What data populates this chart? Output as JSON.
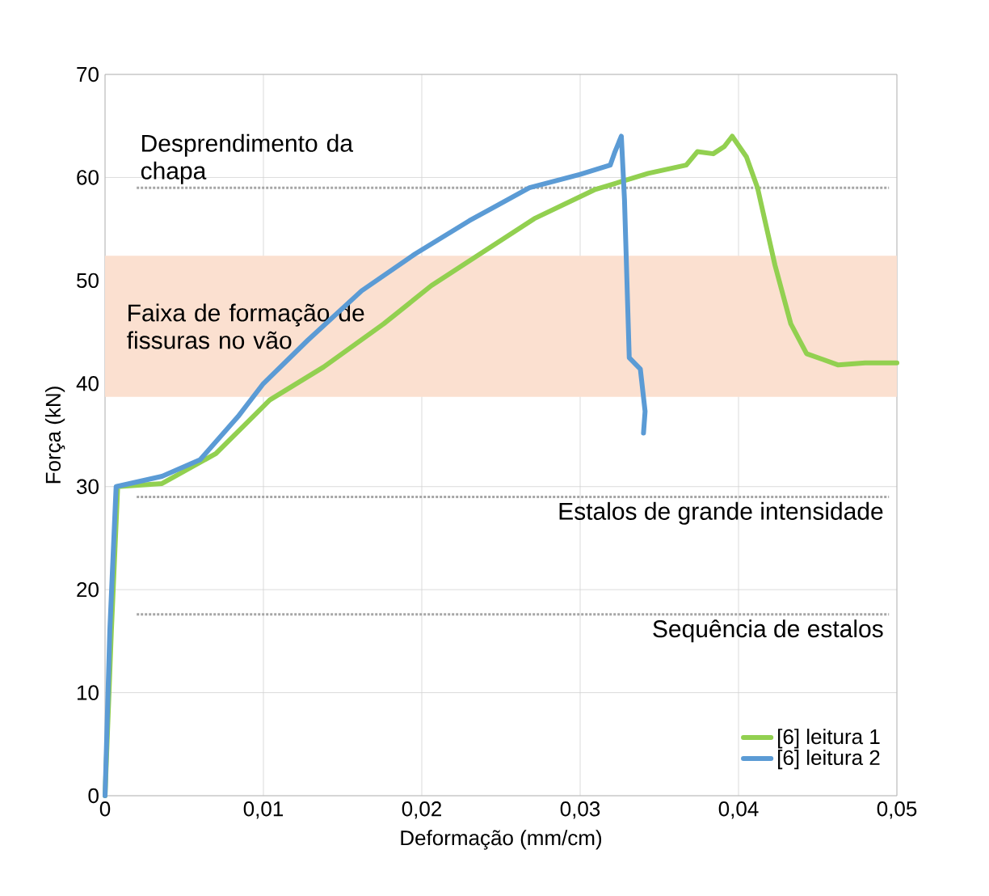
{
  "chart_data": {
    "type": "line",
    "xlabel": "Deformação (mm/cm)",
    "ylabel": "Força (kN)",
    "xlim": [
      0,
      0.05
    ],
    "ylim": [
      0,
      70
    ],
    "xticks": [
      0,
      {
        "value": 0.01,
        "label": "0,01"
      },
      {
        "value": 0.02,
        "label": "0,02"
      },
      {
        "value": 0.03,
        "label": "0,03"
      },
      {
        "value": 0.04,
        "label": "0,04"
      },
      {
        "value": 0.05,
        "label": "0,05"
      }
    ],
    "yticks": [
      0,
      10,
      20,
      30,
      40,
      50,
      60,
      70
    ],
    "grid": true,
    "legend": "bottom right",
    "marker": "none",
    "line_style": "solid",
    "series": [
      {
        "name": "[6] leitura 1",
        "color": "#92d050",
        "x": [
          0,
          0.0004,
          0.0008,
          0.0036,
          0.007,
          0.0104,
          0.0138,
          0.0176,
          0.0206,
          0.0237,
          0.0271,
          0.0309,
          0.0343,
          0.0367,
          0.0374,
          0.0384,
          0.0391,
          0.0396,
          0.0405,
          0.0412,
          0.0423,
          0.0433,
          0.0443,
          0.0463,
          0.048,
          0.05
        ],
        "values": [
          0,
          16,
          30,
          30.3,
          33.2,
          38.4,
          41.6,
          45.8,
          49.5,
          52.6,
          56,
          58.8,
          60.4,
          61.2,
          62.5,
          62.3,
          63,
          64,
          62,
          59,
          51.5,
          45.8,
          42.9,
          41.8,
          42,
          42
        ]
      },
      {
        "name": "[6] leitura 2",
        "color": "#5b9bd5",
        "x": [
          0,
          0.0003,
          0.0007,
          0.0036,
          0.006,
          0.0084,
          0.01,
          0.0128,
          0.0162,
          0.0196,
          0.023,
          0.0268,
          0.03,
          0.0319,
          0.0322,
          0.0326,
          0.0328,
          0.0331,
          0.0338,
          0.0341,
          0.034
        ],
        "values": [
          0,
          16,
          30,
          31,
          32.6,
          36.8,
          40,
          44.2,
          49,
          52.6,
          55.8,
          59,
          60.3,
          61.2,
          62.5,
          64,
          57.8,
          42.5,
          41.4,
          37.3,
          35.2
        ]
      }
    ],
    "ref_lines": [
      {
        "axis": "y",
        "value": 59,
        "label": "Desprendimento da chapa",
        "color": "#a6a6a6",
        "line_style": "dotted"
      },
      {
        "axis": "y",
        "value": 29,
        "label": "Estalos de grande intensidade",
        "color": "#a6a6a6",
        "line_style": "dotted"
      },
      {
        "axis": "y",
        "value": 17.6,
        "label": "Sequência de estalos",
        "color": "#a6a6a6",
        "line_style": "dotted"
      }
    ],
    "bands": [
      {
        "axis": "y",
        "from": 38.7,
        "to": 52.4,
        "label": "Faixa de formação de fissuras no vão",
        "color": "#fbe0d0"
      }
    ]
  }
}
